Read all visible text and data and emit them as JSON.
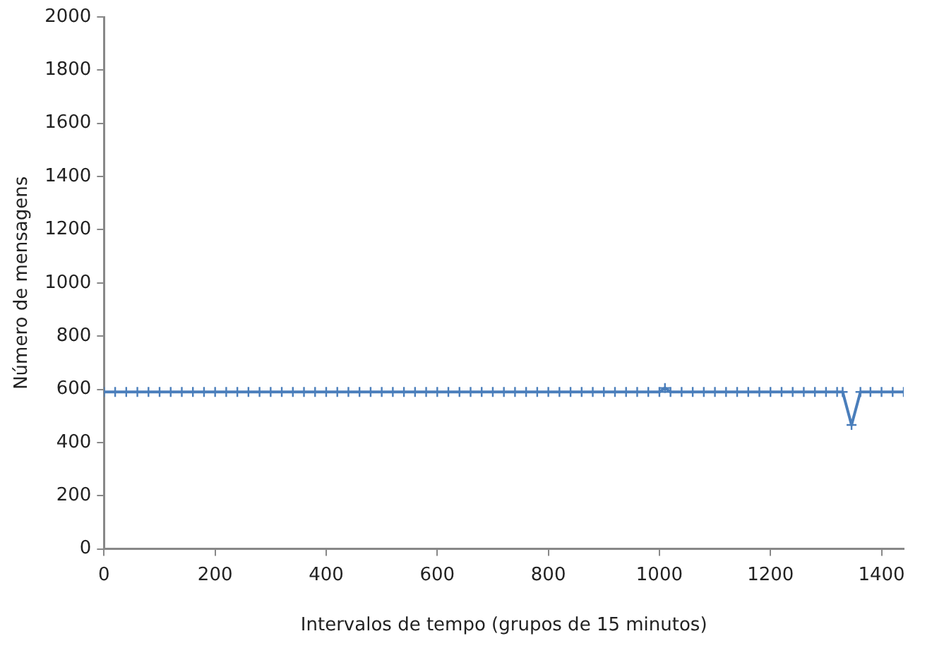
{
  "chart_data": {
    "type": "line",
    "xlabel": "Intervalos de tempo (grupos de 15 minutos)",
    "ylabel": "Número de mensagens",
    "x": [
      0,
      20,
      40,
      60,
      80,
      100,
      120,
      140,
      160,
      180,
      200,
      220,
      240,
      260,
      280,
      300,
      320,
      340,
      360,
      380,
      400,
      420,
      440,
      460,
      480,
      500,
      520,
      540,
      560,
      580,
      600,
      620,
      640,
      660,
      680,
      700,
      720,
      740,
      760,
      780,
      800,
      820,
      840,
      860,
      880,
      900,
      920,
      940,
      960,
      980,
      1000,
      1010,
      1020,
      1040,
      1060,
      1080,
      1100,
      1120,
      1140,
      1160,
      1180,
      1200,
      1220,
      1240,
      1260,
      1280,
      1300,
      1320,
      1330,
      1346,
      1362,
      1380,
      1400,
      1420,
      1440
    ],
    "series": [
      {
        "color": "#4a7ebb",
        "values": [
          590,
          590,
          590,
          590,
          590,
          590,
          590,
          590,
          590,
          590,
          590,
          590,
          590,
          590,
          590,
          590,
          590,
          590,
          590,
          590,
          590,
          590,
          590,
          590,
          590,
          590,
          590,
          590,
          590,
          590,
          590,
          590,
          590,
          590,
          590,
          590,
          590,
          590,
          590,
          590,
          590,
          590,
          590,
          590,
          590,
          590,
          590,
          590,
          590,
          590,
          590,
          605,
          590,
          590,
          590,
          590,
          590,
          590,
          590,
          590,
          590,
          590,
          590,
          590,
          590,
          590,
          590,
          590,
          590,
          466,
          590,
          590,
          590,
          590,
          590
        ]
      }
    ],
    "xlim": [
      0,
      1440
    ],
    "xticks": [
      0,
      200,
      400,
      600,
      800,
      1000,
      1200,
      1400
    ],
    "ylim": [
      0,
      2000
    ],
    "yticks": [
      0,
      200,
      400,
      600,
      800,
      1000,
      1200,
      1400,
      1600,
      1800,
      2000
    ],
    "grid": false,
    "legend": false,
    "marker": "cross",
    "line_style": "solid"
  }
}
